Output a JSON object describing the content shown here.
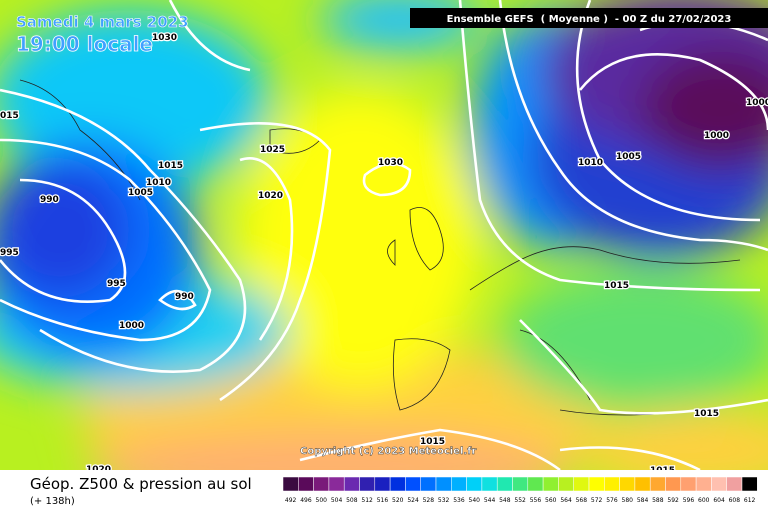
{
  "header": {
    "date": "Samedi 4 mars 2023",
    "time": "19:00 locale",
    "model": "Ensemble GEFS  ( Moyenne )  - 00 Z du 27/02/2023"
  },
  "isobars": [
    "1030",
    "015",
    "1015",
    "1010",
    "1005",
    "990",
    "995",
    "995",
    "990",
    "1000",
    "1025",
    "1020",
    "1030",
    "1010",
    "1005",
    "1000",
    "1000",
    "1015",
    "1015",
    "1015",
    "1015",
    "1020"
  ],
  "copyright": "Copyright (c) 2023 Meteociel.fr",
  "footer": {
    "title": "Géop. Z500 & pression au sol",
    "lead": "(+ 138h)"
  },
  "legend": {
    "labels": [
      "492",
      "496",
      "500",
      "504",
      "508",
      "512",
      "516",
      "520",
      "524",
      "528",
      "532",
      "536",
      "540",
      "544",
      "548",
      "552",
      "556",
      "560",
      "564",
      "568",
      "572",
      "576",
      "580",
      "584",
      "588",
      "592",
      "596",
      "600",
      "604",
      "608",
      "612"
    ]
  }
}
